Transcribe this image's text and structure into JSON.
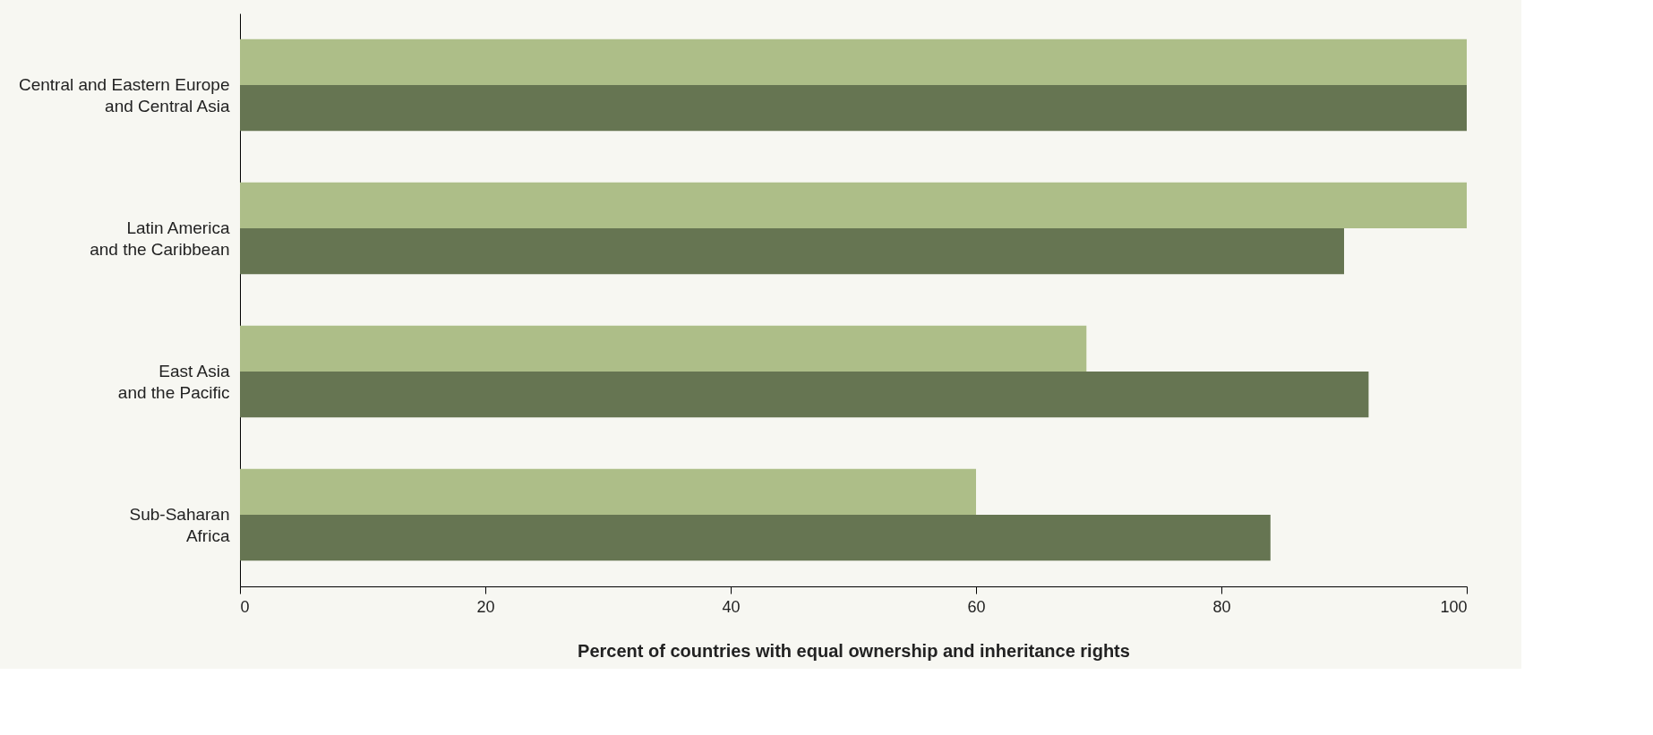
{
  "chart_data": {
    "type": "bar",
    "orientation": "horizontal",
    "categories": [
      "Central and Eastern Europe\nand Central Asia",
      "Latin America\nand the Caribbean",
      "East Asia\nand the Pacific",
      "Sub-Saharan\nAfrica"
    ],
    "series": [
      {
        "color": "#adbe88",
        "values": [
          100,
          100,
          69,
          60
        ]
      },
      {
        "color": "#667552",
        "values": [
          100,
          90,
          92,
          84
        ]
      }
    ],
    "xlabel": "Percent of countries with equal ownership and inheritance rights",
    "xlim": [
      0,
      100
    ],
    "xticks": [
      0,
      20,
      40,
      60,
      80,
      100
    ],
    "grid": false,
    "legend": false
  }
}
